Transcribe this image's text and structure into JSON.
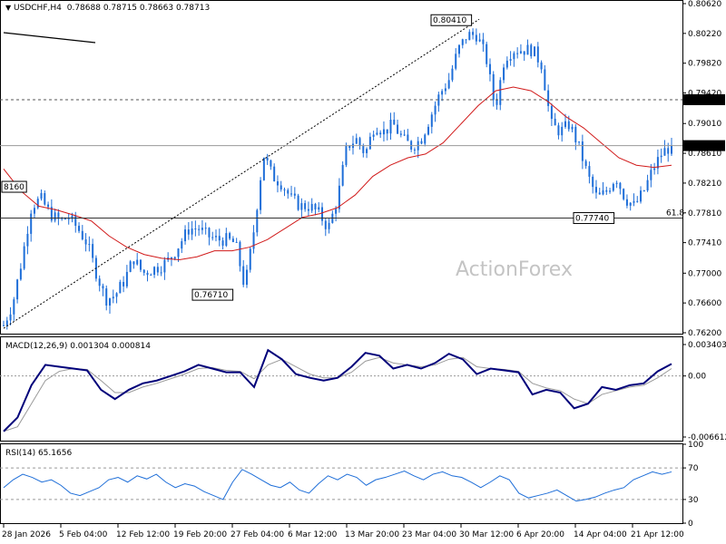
{
  "header": {
    "symbol": "USDCHF,H4",
    "ohlc": "0.78688 0.78715 0.78663 0.78713"
  },
  "watermark": "ActionForex",
  "colors": {
    "candle": "#1e6ed8",
    "ma": "#d11a1a",
    "macd": "#00007a",
    "signal": "#9a9a9a",
    "rsi": "#1e6ed8",
    "grid": "#c8c8c8",
    "box_text": "#00006e",
    "tag_bg": "#000000",
    "tag_text": "#ffffff"
  },
  "price_panel": {
    "y_ticks": [
      "0.80620",
      "0.80220",
      "0.79820",
      "0.79420",
      "0.79010",
      "0.78610",
      "0.78210",
      "0.77810",
      "0.77410",
      "0.77000",
      "0.76600",
      "0.76200"
    ],
    "price_tag": "0.78713",
    "level_tag": "0.79330",
    "fib_label": "61.8",
    "annotations": [
      "0.80410",
      "0.77740",
      "0.76710",
      "8160"
    ]
  },
  "macd_panel": {
    "label": "MACD(12,26,9) 0.001304 0.000814",
    "y_ticks": [
      "0.003403",
      "0.00",
      "-0.006612"
    ]
  },
  "rsi_panel": {
    "label": "RSI(14) 65.1656",
    "y_ticks": [
      "100",
      "70",
      "30",
      "0"
    ]
  },
  "x_ticks": [
    "28 Jan 2026",
    "5 Feb 04:00",
    "12 Feb 12:00",
    "19 Feb 20:00",
    "27 Feb 04:00",
    "6 Mar 12:00",
    "13 Mar 20:00",
    "23 Mar 04:00",
    "30 Mar 12:00",
    "6 Apr 20:00",
    "14 Apr 04:00",
    "21 Apr 12:00"
  ],
  "chart_data": [
    {
      "type": "candlestick",
      "title": "USDCHF,H4",
      "ylim": [
        0.762,
        0.8062
      ],
      "y_tick_values": [
        0.8062,
        0.8022,
        0.7982,
        0.7942,
        0.7901,
        0.7861,
        0.7821,
        0.7781,
        0.7741,
        0.77,
        0.766,
        0.762
      ],
      "x_ticks": [
        "28 Jan 2026",
        "5 Feb 04:00",
        "12 Feb 12:00",
        "19 Feb 20:00",
        "27 Feb 04:00",
        "6 Mar 12:00",
        "13 Mar 20:00",
        "23 Mar 04:00",
        "30 Mar 12:00",
        "6 Apr 20:00",
        "14 Apr 04:00",
        "21 Apr 12:00"
      ],
      "path_close": [
        0.763,
        0.766,
        0.772,
        0.779,
        0.78,
        0.778,
        0.777,
        0.7775,
        0.776,
        0.774,
        0.77,
        0.7665,
        0.767,
        0.769,
        0.772,
        0.77,
        0.7705,
        0.771,
        0.772,
        0.774,
        0.776,
        0.776,
        0.775,
        0.7745,
        0.7745,
        0.774,
        0.768,
        0.776,
        0.786,
        0.783,
        0.782,
        0.78,
        0.779,
        0.779,
        0.778,
        0.776,
        0.78,
        0.787,
        0.788,
        0.786,
        0.79,
        0.789,
        0.79,
        0.788,
        0.787,
        0.788,
        0.791,
        0.794,
        0.796,
        0.8,
        0.802,
        0.802,
        0.799,
        0.792,
        0.799,
        0.8,
        0.8,
        0.8,
        0.798,
        0.79,
        0.789,
        0.79,
        0.787,
        0.783,
        0.78,
        0.781,
        0.783,
        0.78,
        0.779,
        0.781,
        0.784,
        0.7862,
        0.7871
      ],
      "ma": [
        0.784,
        0.781,
        0.779,
        0.7785,
        0.7778,
        0.777,
        0.775,
        0.7735,
        0.7725,
        0.772,
        0.7718,
        0.7722,
        0.773,
        0.773,
        0.7735,
        0.7745,
        0.776,
        0.7775,
        0.778,
        0.7788,
        0.7805,
        0.783,
        0.7845,
        0.7855,
        0.786,
        0.7875,
        0.79,
        0.7925,
        0.7945,
        0.795,
        0.7945,
        0.793,
        0.791,
        0.7895,
        0.7875,
        0.7855,
        0.7845,
        0.7842,
        0.7845
      ],
      "annotations": [
        {
          "label": "0.80410",
          "value": 0.8041
        },
        {
          "label": "0.77740",
          "value": 0.7774
        },
        {
          "label": "0.76710",
          "value": 0.7671
        },
        {
          "label": "8160",
          "value": 0.7816
        }
      ],
      "levels": [
        {
          "label": "0.79330",
          "value": 0.7933,
          "style": "dashed"
        },
        {
          "label": "0.78713",
          "value": 0.78713,
          "style": "solid"
        },
        {
          "label": "61.8",
          "value": 0.7774,
          "style": "solid"
        }
      ]
    },
    {
      "type": "line",
      "title": "MACD(12,26,9) 0.001304 0.000814",
      "ylim": [
        -0.006612,
        0.003403
      ],
      "series": [
        {
          "name": "MACD",
          "values": [
            -0.006,
            -0.0045,
            -0.001,
            0.0012,
            0.001,
            0.0008,
            0.0006,
            -0.0015,
            -0.0025,
            -0.0015,
            -0.0008,
            -0.0005,
            0.0,
            0.0005,
            0.0012,
            0.0008,
            0.0004,
            0.0004,
            -0.0012,
            0.0028,
            0.0018,
            0.0002,
            -0.0002,
            -0.0005,
            -0.0002,
            0.001,
            0.0025,
            0.0022,
            0.0008,
            0.0012,
            0.0008,
            0.0014,
            0.0024,
            0.0018,
            0.0002,
            0.0008,
            0.0006,
            0.0004,
            -0.002,
            -0.0015,
            -0.0018,
            -0.0035,
            -0.003,
            -0.0012,
            -0.0015,
            -0.001,
            -0.0008,
            0.0005,
            0.0013
          ]
        },
        {
          "name": "Signal",
          "values": [
            -0.006,
            -0.0055,
            -0.003,
            -0.0005,
            0.0005,
            0.0008,
            0.0007,
            -0.0005,
            -0.0018,
            -0.0018,
            -0.0012,
            -0.0008,
            -0.0003,
            0.0002,
            0.0008,
            0.0009,
            0.0006,
            0.0005,
            -0.0003,
            0.0012,
            0.0018,
            0.001,
            0.0002,
            -0.0002,
            -0.0002,
            0.0004,
            0.0016,
            0.002,
            0.0014,
            0.0012,
            0.001,
            0.0012,
            0.0018,
            0.002,
            0.001,
            0.0008,
            0.0007,
            0.0005,
            -0.0008,
            -0.0013,
            -0.0016,
            -0.0025,
            -0.003,
            -0.002,
            -0.0016,
            -0.0012,
            -0.001,
            -0.0002,
            0.0008
          ]
        }
      ]
    },
    {
      "type": "line",
      "title": "RSI(14) 65.1656",
      "ylim": [
        0,
        100
      ],
      "levels": [
        70,
        30
      ],
      "series": [
        {
          "name": "RSI(14)",
          "values": [
            45,
            55,
            62,
            58,
            52,
            55,
            48,
            38,
            35,
            40,
            45,
            55,
            58,
            52,
            60,
            56,
            62,
            52,
            45,
            50,
            47,
            40,
            35,
            30,
            52,
            68,
            62,
            55,
            48,
            45,
            52,
            42,
            38,
            50,
            60,
            55,
            62,
            58,
            48,
            55,
            58,
            62,
            66,
            60,
            55,
            62,
            65,
            60,
            58,
            52,
            45,
            52,
            60,
            55,
            38,
            32,
            35,
            38,
            42,
            35,
            28,
            30,
            33,
            38,
            42,
            45,
            55,
            60,
            65,
            62,
            65
          ]
        }
      ]
    }
  ]
}
